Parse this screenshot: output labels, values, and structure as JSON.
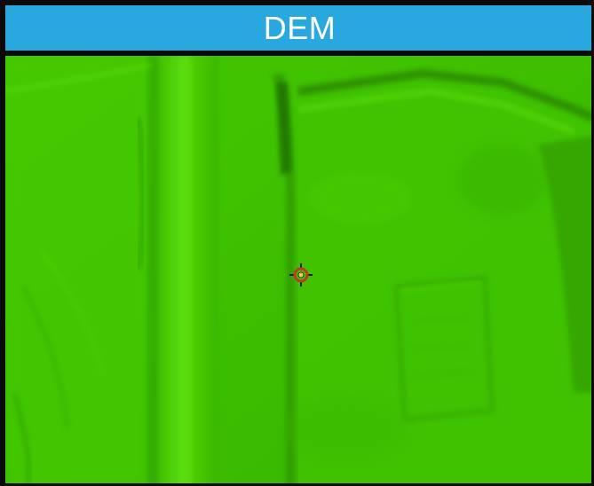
{
  "panel": {
    "title": "DEM"
  },
  "map": {
    "layer": "dem-hillshade",
    "base_color": "#3fc400",
    "highlight_color": "#5fe00a",
    "shadow_color": "#1f7a00",
    "marker_icon": "crosshair-target-icon",
    "marker_ring_color": "#c0392b",
    "marker_center_color": "#f4d03f"
  }
}
